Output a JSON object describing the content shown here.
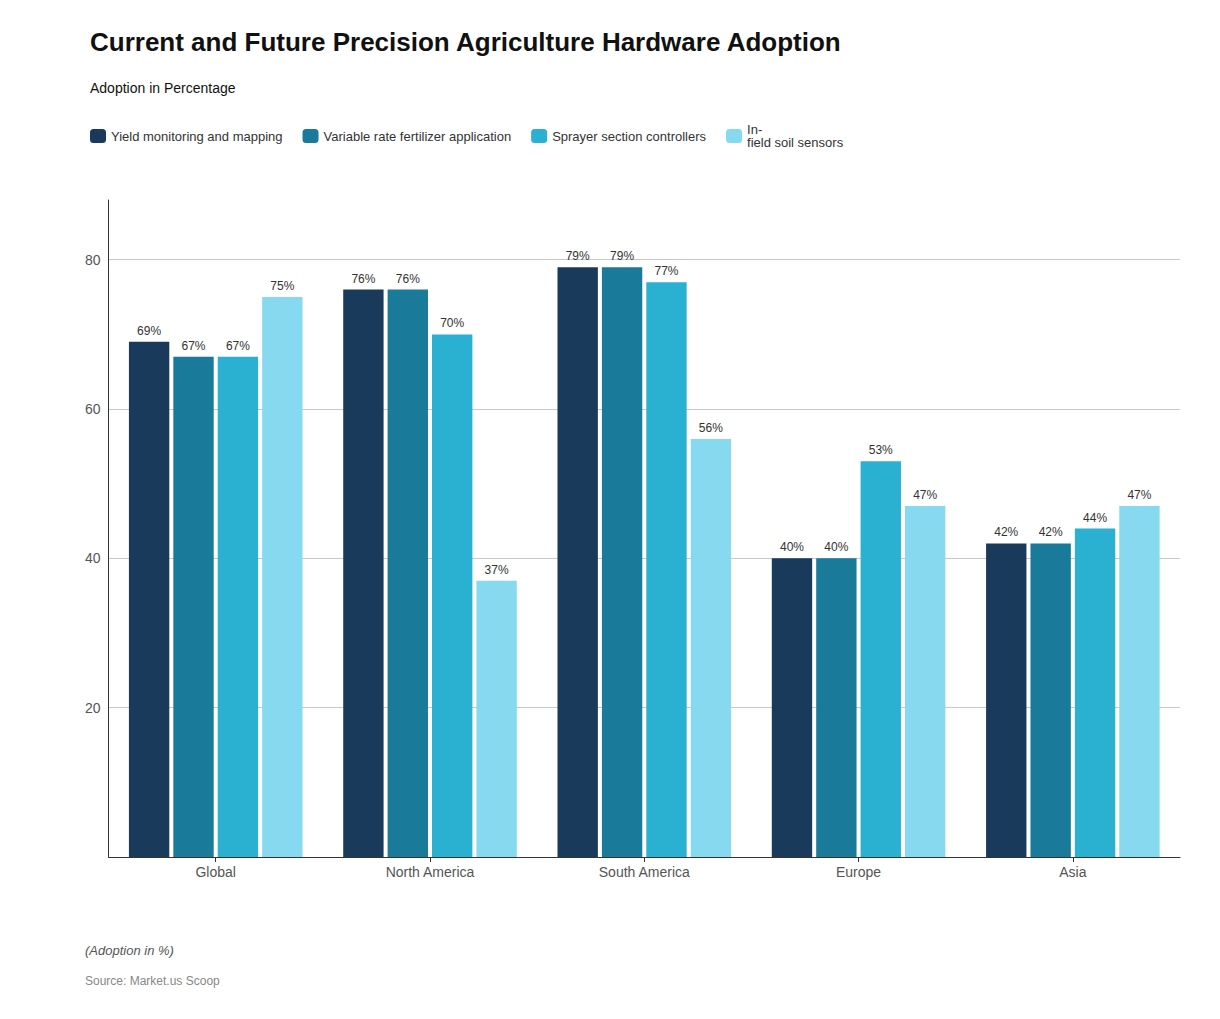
{
  "chart_data": {
    "type": "bar",
    "title": "Current and Future Precision Agriculture Hardware Adoption",
    "subtitle": "Adoption in Percentage",
    "categories": [
      "Global",
      "North America",
      "South America",
      "Europe",
      "Asia"
    ],
    "series": [
      {
        "name": "Yield monitoring and mapping",
        "color": "#1a3a5c",
        "values": [
          69,
          76,
          79,
          40,
          42
        ],
        "value_labels": [
          "69%",
          "76%",
          "79%",
          "40%",
          "42%"
        ]
      },
      {
        "name": "Variable rate fertilizer application",
        "color": "#1a7a9a",
        "values": [
          67,
          76,
          79,
          40,
          42
        ],
        "value_labels": [
          "67%",
          "76%",
          "79%",
          "40%",
          "42%"
        ]
      },
      {
        "name": "Sprayer section controllers",
        "color": "#2ab0d0",
        "values": [
          67,
          70,
          77,
          53,
          44
        ],
        "value_labels": [
          "67%",
          "70%",
          "77%",
          "53%",
          "44%"
        ]
      },
      {
        "name": "In-\nfield soil sensors",
        "color": "#87d9f0",
        "values": [
          75,
          37,
          56,
          47,
          47
        ],
        "value_labels": [
          "75%",
          "37%",
          "56%",
          "47%",
          "47%"
        ]
      }
    ],
    "ylim": [
      0,
      88
    ],
    "yticks": [
      20,
      40,
      60,
      80
    ],
    "grid": true,
    "legend": "top",
    "data_labels": true,
    "annotations": [
      "(Adoption in %)",
      "Source: Market.us Scoop"
    ]
  }
}
